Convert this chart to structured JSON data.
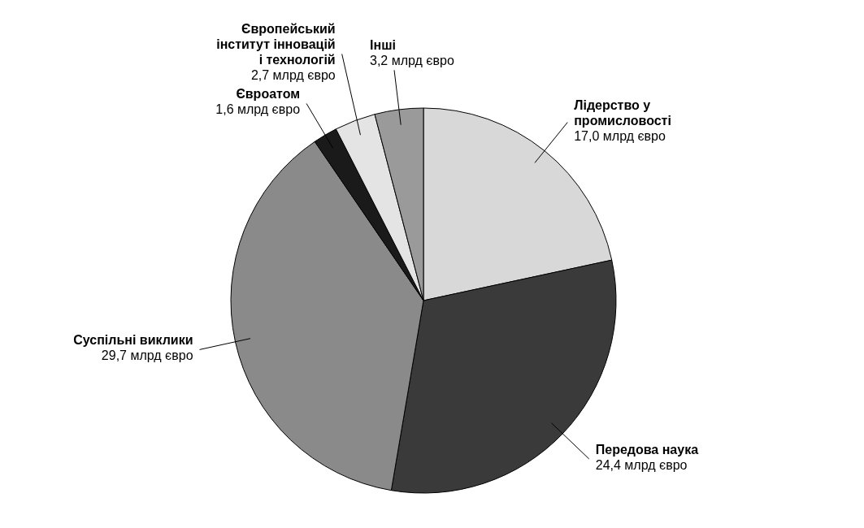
{
  "chart_data": {
    "type": "pie",
    "categories": [
      "Лідерство у промисловості",
      "Передова наука",
      "Суспільні виклики",
      "Євроатом",
      "Європейський інститут інновацій і технологій",
      "Інші"
    ],
    "values": [
      17.0,
      24.4,
      29.7,
      1.6,
      2.7,
      3.2
    ],
    "value_labels": [
      "17,0 млрд євро",
      "24,4 млрд євро",
      "29,7 млрд євро",
      "1,6 млрд євро",
      "2,7 млрд євро",
      "3,2 млрд євро"
    ],
    "colors": [
      "#d8d8d8",
      "#3a3a3a",
      "#8a8a8a",
      "#1a1a1a",
      "#e4e4e4",
      "#9a9a9a"
    ]
  }
}
